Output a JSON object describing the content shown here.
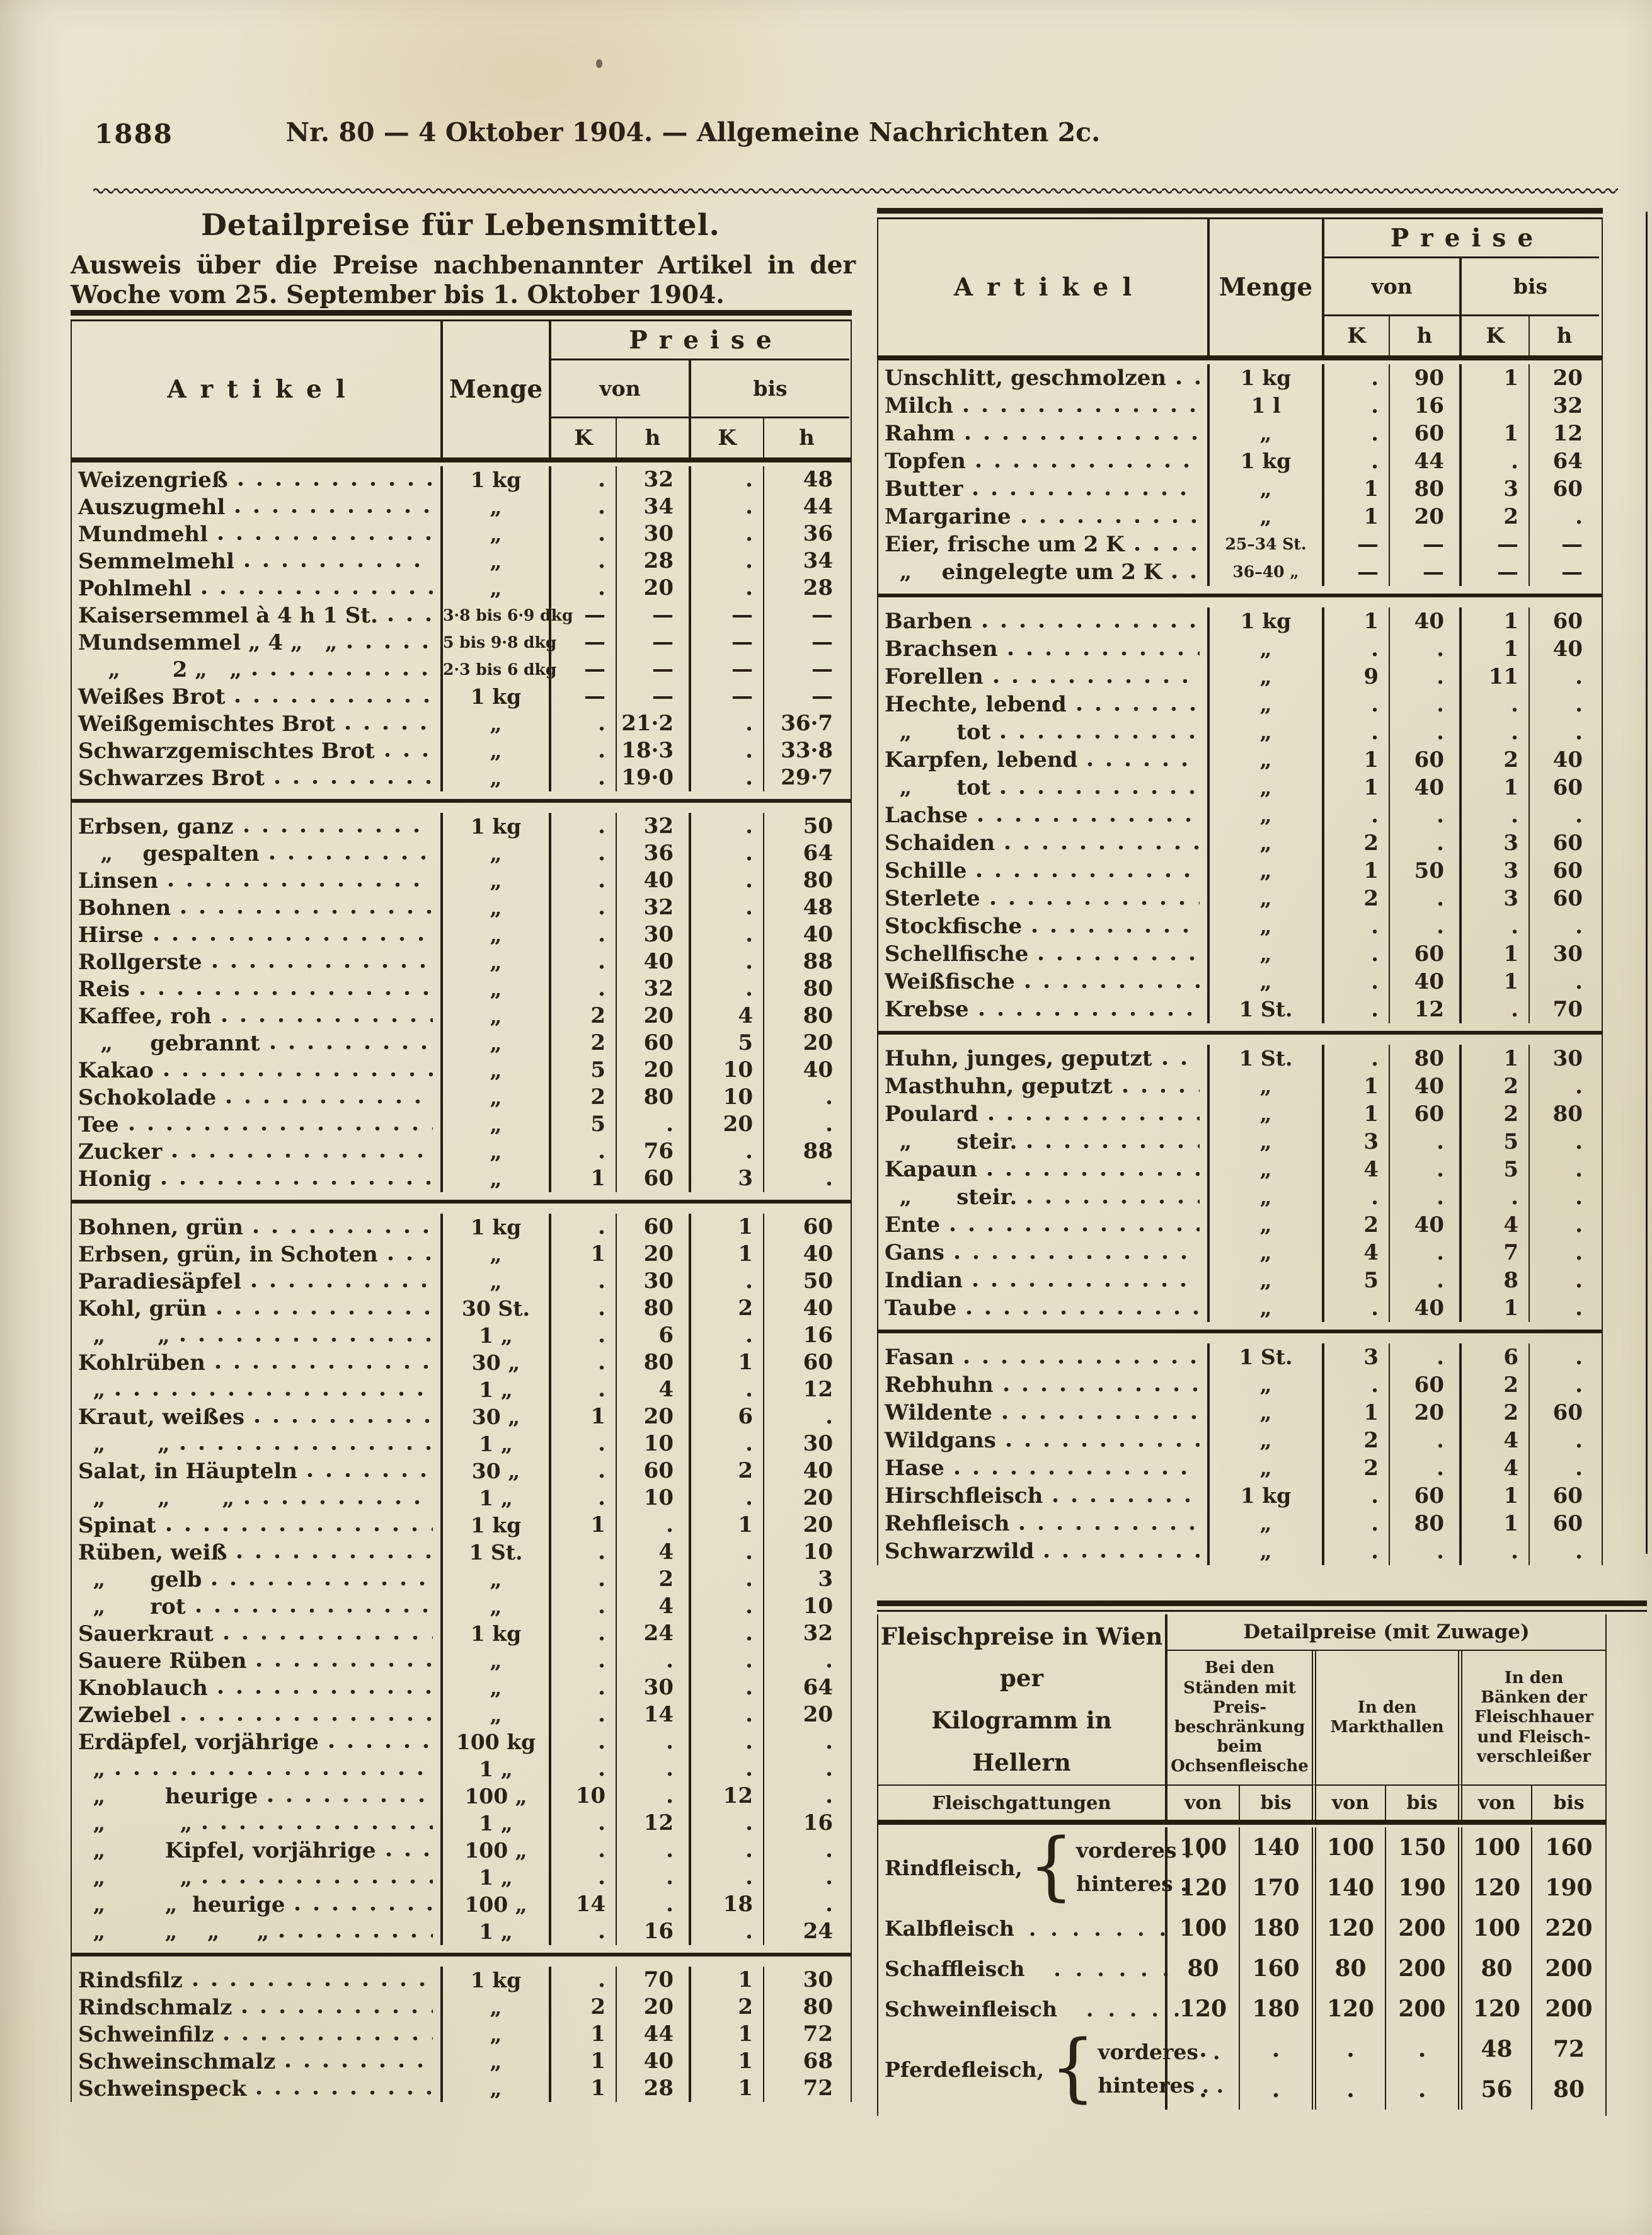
{
  "page": {
    "number": "1888",
    "masthead": "Nr. 80  —  4 Oktober 1904.  —  Allgemeine Nachrichten 2c."
  },
  "left": {
    "title": "Detailpreise für Lebensmittel.",
    "intro": "Ausweis über die Preise nachbenannter Artikel in der Woche vom 25. September bis 1. Oktober 1904."
  },
  "table_columns": {
    "artikel": "Artikel",
    "menge": "Menge",
    "preise": "Preise",
    "von": "von",
    "bis": "bis",
    "k": "K",
    "h": "h"
  },
  "left_table": {
    "sections": [
      {
        "rows": [
          [
            "Weizengrieß",
            "1 kg",
            ".",
            "32",
            ".",
            "48"
          ],
          [
            "Auszugmehl",
            "„",
            ".",
            "34",
            ".",
            "44"
          ],
          [
            "Mundmehl",
            "„",
            ".",
            "30",
            ".",
            "36"
          ],
          [
            "Semmelmehl",
            "„",
            ".",
            "28",
            ".",
            "34"
          ],
          [
            "Pohlmehl",
            "„",
            ".",
            "20",
            ".",
            "28"
          ],
          [
            "Kaisersemmel à 4 h 1 St.",
            "3·8 bis 6·9 dkg",
            "—",
            "—",
            "—",
            "—"
          ],
          [
            "Mundsemmel „ 4 „   „",
            "5 bis 9·8 dkg",
            "—",
            "—",
            "—",
            "—"
          ],
          [
            "    „       2 „   „",
            "2·3 bis 6 dkg",
            "—",
            "—",
            "—",
            "—"
          ],
          [
            "Weißes Brot",
            "1 kg",
            "—",
            "—",
            "—",
            "—"
          ],
          [
            "Weißgemischtes Brot",
            "„",
            ".",
            "21·2",
            ".",
            "36·7"
          ],
          [
            "Schwarzgemischtes Brot",
            "„",
            ".",
            "18·3",
            ".",
            "33·8"
          ],
          [
            "Schwarzes Brot",
            "„",
            ".",
            "19·0",
            ".",
            "29·7"
          ]
        ]
      },
      {
        "rows": [
          [
            "Erbsen, ganz",
            "1 kg",
            ".",
            "32",
            ".",
            "50"
          ],
          [
            "   „    gespalten",
            "„",
            ".",
            "36",
            ".",
            "64"
          ],
          [
            "Linsen",
            "„",
            ".",
            "40",
            ".",
            "80"
          ],
          [
            "Bohnen",
            "„",
            ".",
            "32",
            ".",
            "48"
          ],
          [
            "Hirse",
            "„",
            ".",
            "30",
            ".",
            "40"
          ],
          [
            "Rollgerste",
            "„",
            ".",
            "40",
            ".",
            "88"
          ],
          [
            "Reis",
            "„",
            ".",
            "32",
            ".",
            "80"
          ],
          [
            "Kaffee, roh",
            "„",
            "2",
            "20",
            "4",
            "80"
          ],
          [
            "   „     gebrannt",
            "„",
            "2",
            "60",
            "5",
            "20"
          ],
          [
            "Kakao",
            "„",
            "5",
            "20",
            "10",
            "40"
          ],
          [
            "Schokolade",
            "„",
            "2",
            "80",
            "10",
            "."
          ],
          [
            "Tee",
            "„",
            "5",
            ".",
            "20",
            "."
          ],
          [
            "Zucker",
            "„",
            ".",
            "76",
            ".",
            "88"
          ],
          [
            "Honig",
            "„",
            "1",
            "60",
            "3",
            "."
          ]
        ]
      },
      {
        "rows": [
          [
            "Bohnen, grün",
            "1 kg",
            ".",
            "60",
            "1",
            "60"
          ],
          [
            "Erbsen, grün, in Schoten",
            "„",
            "1",
            "20",
            "1",
            "40"
          ],
          [
            "Paradiesäpfel",
            "„",
            ".",
            "30",
            ".",
            "50"
          ],
          [
            "Kohl, grün",
            "30 St.",
            ".",
            "80",
            "2",
            "40"
          ],
          [
            "  „       „",
            "1 „",
            ".",
            "6",
            ".",
            "16"
          ],
          [
            "Kohlrüben",
            "30 „",
            ".",
            "80",
            "1",
            "60"
          ],
          [
            "  „",
            "1 „",
            ".",
            "4",
            ".",
            "12"
          ],
          [
            "Kraut, weißes",
            "30 „",
            "1",
            "20",
            "6",
            "."
          ],
          [
            "  „       „",
            "1 „",
            ".",
            "10",
            ".",
            "30"
          ],
          [
            "Salat, in Häupteln",
            "30 „",
            ".",
            "60",
            "2",
            "40"
          ],
          [
            "  „       „       „",
            "1 „",
            ".",
            "10",
            ".",
            "20"
          ],
          [
            "Spinat",
            "1 kg",
            "1",
            ".",
            "1",
            "20"
          ],
          [
            "Rüben, weiß",
            "1 St.",
            ".",
            "4",
            ".",
            "10"
          ],
          [
            "  „      gelb",
            "„",
            ".",
            "2",
            ".",
            "3"
          ],
          [
            "  „      rot",
            "„",
            ".",
            "4",
            ".",
            "10"
          ],
          [
            "Sauerkraut",
            "1 kg",
            ".",
            "24",
            ".",
            "32"
          ],
          [
            "Sauere Rüben",
            "„",
            ".",
            ".",
            ".",
            "."
          ],
          [
            "Knoblauch",
            "„",
            ".",
            "30",
            ".",
            "64"
          ],
          [
            "Zwiebel",
            "„",
            ".",
            "14",
            ".",
            "20"
          ],
          [
            "Erdäpfel, vorjährige",
            "100 kg",
            ".",
            ".",
            ".",
            "."
          ],
          [
            "  „",
            "1 „",
            ".",
            ".",
            ".",
            "."
          ],
          [
            "  „        heurige",
            "100 „",
            "10",
            ".",
            "12",
            "."
          ],
          [
            "  „          „",
            "1 „",
            ".",
            "12",
            ".",
            "16"
          ],
          [
            "  „        Kipfel, vorjährige",
            "100 „",
            ".",
            ".",
            ".",
            "."
          ],
          [
            "  „          „",
            "1 „",
            ".",
            ".",
            ".",
            "."
          ],
          [
            "  „        „  heurige",
            "100 „",
            "14",
            ".",
            "18",
            "."
          ],
          [
            "  „        „    „     „",
            "1 „",
            ".",
            "16",
            ".",
            "24"
          ]
        ]
      },
      {
        "rows": [
          [
            "Rindsfilz",
            "1 kg",
            ".",
            "70",
            "1",
            "30"
          ],
          [
            "Rindschmalz",
            "„",
            "2",
            "20",
            "2",
            "80"
          ],
          [
            "Schweinfilz",
            "„",
            "1",
            "44",
            "1",
            "72"
          ],
          [
            "Schweinschmalz",
            "„",
            "1",
            "40",
            "1",
            "68"
          ],
          [
            "Schweinspeck",
            "„",
            "1",
            "28",
            "1",
            "72"
          ]
        ]
      }
    ]
  },
  "right_table": {
    "sections": [
      {
        "rows": [
          [
            "Unschlitt, geschmolzen",
            "1 kg",
            ".",
            "90",
            "1",
            "20"
          ],
          [
            "Milch",
            "1 l",
            ".",
            "16",
            "",
            "32"
          ],
          [
            "Rahm",
            "„",
            ".",
            "60",
            "1",
            "12"
          ],
          [
            "Topfen",
            "1 kg",
            ".",
            "44",
            ".",
            "64"
          ],
          [
            "Butter",
            "„",
            "1",
            "80",
            "3",
            "60"
          ],
          [
            "Margarine",
            "„",
            "1",
            "20",
            "2",
            "."
          ],
          [
            "Eier, frische um 2 K",
            "25–34 St.",
            "—",
            "—",
            "—",
            "—"
          ],
          [
            "  „    eingelegte um 2 K",
            "36–40 „",
            "—",
            "—",
            "—",
            "—"
          ]
        ]
      },
      {
        "rows": [
          [
            "Barben",
            "1 kg",
            "1",
            "40",
            "1",
            "60"
          ],
          [
            "Brachsen",
            "„",
            ".",
            ".",
            "1",
            "40"
          ],
          [
            "Forellen",
            "„",
            "9",
            ".",
            "11",
            "."
          ],
          [
            "Hechte, lebend",
            "„",
            ".",
            ".",
            ".",
            "."
          ],
          [
            "  „      tot",
            "„",
            ".",
            ".",
            ".",
            "."
          ],
          [
            "Karpfen, lebend",
            "„",
            "1",
            "60",
            "2",
            "40"
          ],
          [
            "  „      tot",
            "„",
            "1",
            "40",
            "1",
            "60"
          ],
          [
            "Lachse",
            "„",
            ".",
            ".",
            ".",
            "."
          ],
          [
            "Schaiden",
            "„",
            "2",
            ".",
            "3",
            "60"
          ],
          [
            "Schille",
            "„",
            "1",
            "50",
            "3",
            "60"
          ],
          [
            "Sterlete",
            "„",
            "2",
            ".",
            "3",
            "60"
          ],
          [
            "Stockfische",
            "„",
            ".",
            ".",
            ".",
            "."
          ],
          [
            "Schellfische",
            "„",
            ".",
            "60",
            "1",
            "30"
          ],
          [
            "Weißfische",
            "„",
            ".",
            "40",
            "1",
            "."
          ],
          [
            "Krebse",
            "1 St.",
            ".",
            "12",
            ".",
            "70"
          ]
        ]
      },
      {
        "rows": [
          [
            "Huhn, junges, geputzt",
            "1 St.",
            ".",
            "80",
            "1",
            "30"
          ],
          [
            "Masthuhn, geputzt",
            "„",
            "1",
            "40",
            "2",
            "."
          ],
          [
            "Poulard",
            "„",
            "1",
            "60",
            "2",
            "80"
          ],
          [
            "  „      steir.",
            "„",
            "3",
            ".",
            "5",
            "."
          ],
          [
            "Kapaun",
            "„",
            "4",
            ".",
            "5",
            "."
          ],
          [
            "  „      steir.",
            "„",
            ".",
            ".",
            ".",
            "."
          ],
          [
            "Ente",
            "„",
            "2",
            "40",
            "4",
            "."
          ],
          [
            "Gans",
            "„",
            "4",
            ".",
            "7",
            "."
          ],
          [
            "Indian",
            "„",
            "5",
            ".",
            "8",
            "."
          ],
          [
            "Taube",
            "„",
            ".",
            "40",
            "1",
            "."
          ]
        ]
      },
      {
        "rows": [
          [
            "Fasan",
            "1 St.",
            "3",
            ".",
            "6",
            "."
          ],
          [
            "Rebhuhn",
            "„",
            ".",
            "60",
            "2",
            "."
          ],
          [
            "Wildente",
            "„",
            "1",
            "20",
            "2",
            "60"
          ],
          [
            "Wildgans",
            "„",
            "2",
            ".",
            "4",
            "."
          ],
          [
            "Hase",
            "„",
            "2",
            ".",
            "4",
            "."
          ],
          [
            "Hirschfleisch",
            "1 kg",
            ".",
            "60",
            "1",
            "60"
          ],
          [
            "Rehfleisch",
            "„",
            ".",
            "80",
            "1",
            "60"
          ],
          [
            "Schwarzwild",
            "„",
            ".",
            ".",
            ".",
            "."
          ]
        ]
      }
    ]
  },
  "bottom": {
    "title1": "Fleischpreise in Wien per",
    "title2": "Kilogramm in Hellern",
    "span_header": "Detailpreise (mit Zuwage)",
    "group1": "Bei den\nStänden mit\nPreis-\nbeschränkung\nbeim\nOchsenfleische",
    "group2": "In den\nMarkthallen",
    "group3": "In den\nBänken der\nFleischhauer\nund Fleisch-\nverschleißer",
    "fleischgattungen": "Fleischgattungen",
    "von": "von",
    "bis": "bis",
    "rows": [
      {
        "label": "Rindfleisch,",
        "subs": [
          "vorderes . .",
          "hinteres ."
        ],
        "values": [
          [
            "100",
            "140",
            "100",
            "150",
            "100",
            "160"
          ],
          [
            "120",
            "170",
            "140",
            "190",
            "120",
            "190"
          ]
        ]
      },
      {
        "label": "Kalbfleisch  .  .  .  .  .  .  .",
        "values": [
          "100",
          "180",
          "120",
          "200",
          "100",
          "220"
        ]
      },
      {
        "label": "Schaffleisch    .  .  .  .  .  .",
        "values": [
          "80",
          "160",
          "80",
          "200",
          "80",
          "200"
        ]
      },
      {
        "label": "Schweinfleisch    .  .  .  .  .",
        "values": [
          "120",
          "180",
          "120",
          "200",
          "120",
          "200"
        ]
      },
      {
        "label": "Pferdefleisch,",
        "subs": [
          "vorderes  .",
          "hinteres . ."
        ],
        "values": [
          [
            ".",
            ".",
            ".",
            ".",
            "48",
            "72"
          ],
          [
            ".",
            ".",
            ".",
            ".",
            "56",
            "80"
          ]
        ]
      }
    ]
  }
}
